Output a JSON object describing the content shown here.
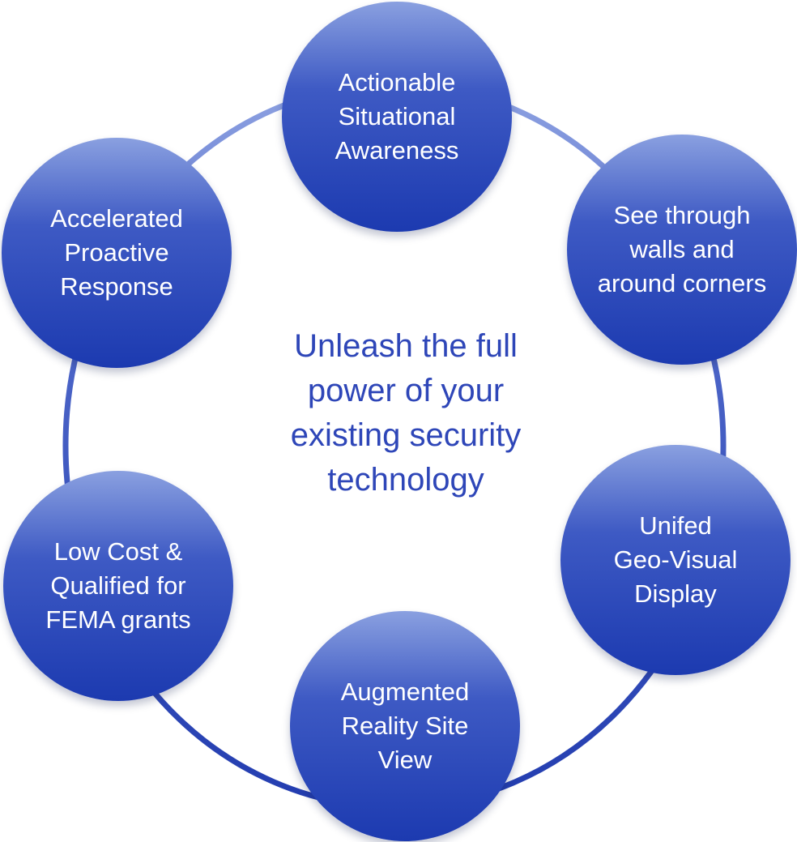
{
  "colors": {
    "ring": "#2a44b4",
    "node_top": "#8aa0e0",
    "node_bottom": "#1c3ab0",
    "center_text": "#2e46b8"
  },
  "center": {
    "text": "Unleash the full\npower of your\nexisting security\ntechnology"
  },
  "nodes": [
    {
      "label": "Actionable\nSituational\nAwareness"
    },
    {
      "label": "See through\nwalls and\naround corners"
    },
    {
      "label": "Unifed\nGeo-Visual\nDisplay"
    },
    {
      "label": "Augmented\nReality Site\nView"
    },
    {
      "label": "Low Cost &\nQualified for\nFEMA grants"
    },
    {
      "label": "Accelerated\nProactive\nResponse"
    }
  ]
}
